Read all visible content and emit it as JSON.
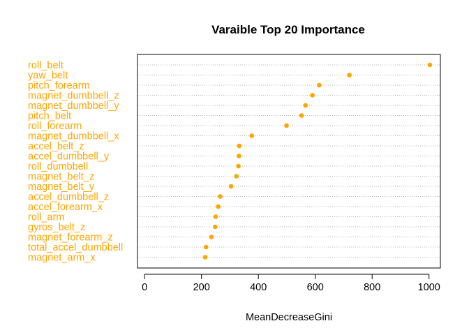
{
  "chart_data": {
    "type": "scatter",
    "subtype": "dotchart",
    "title": "Varaible Top 20 Importance",
    "xlabel": "MeanDecreaseGini",
    "ylabel": "",
    "xlim": [
      -25,
      1040
    ],
    "x_ticks": [
      0,
      200,
      400,
      600,
      800,
      1000
    ],
    "grid": "horizontal-dotted",
    "point_color": "#FFA500",
    "label_color": "#FFA500",
    "categories": [
      "roll_belt",
      "yaw_belt",
      "pitch_forearm",
      "magnet_dumbbell_z",
      "magnet_dumbbell_y",
      "pitch_belt",
      "roll_forearm",
      "magnet_dumbbell_x",
      "accel_belt_z",
      "accel_dumbbell_y",
      "roll_dumbbell",
      "magnet_belt_z",
      "magnet_belt_y",
      "accel_dumbbell_z",
      "accel_forearm_x",
      "roll_arm",
      "gyros_belt_z",
      "magnet_forearm_z",
      "total_accel_dumbbell",
      "magnet_arm_x"
    ],
    "values": [
      1003,
      720,
      614,
      590,
      566,
      552,
      499,
      377,
      333,
      332,
      330,
      323,
      304,
      266,
      259,
      250,
      248,
      235,
      216,
      213
    ]
  }
}
